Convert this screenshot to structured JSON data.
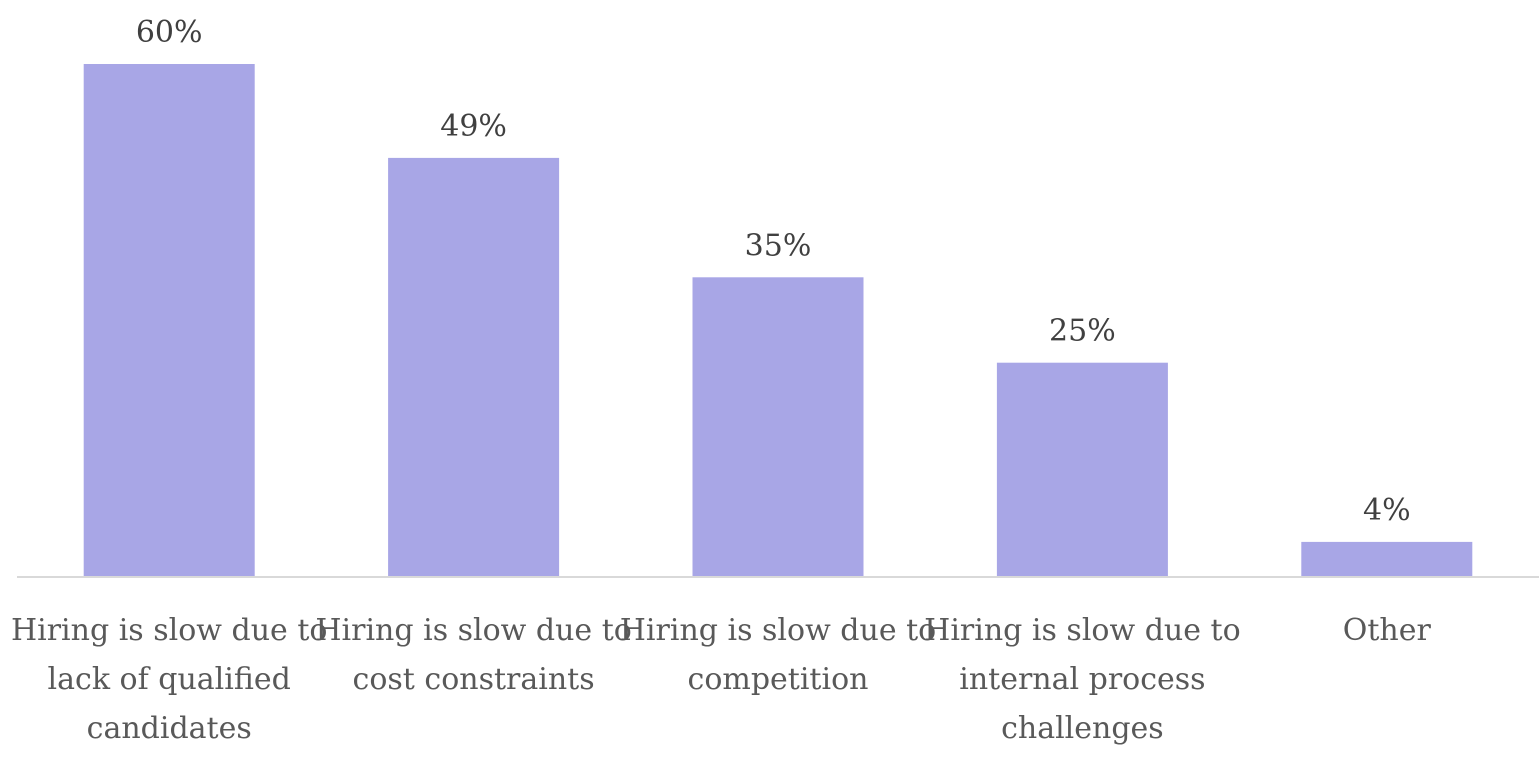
{
  "chart_data": {
    "type": "bar",
    "categories": [
      [
        "Hiring is slow due to",
        "lack of qualified",
        "candidates"
      ],
      [
        "Hiring is slow due to",
        "cost constraints"
      ],
      [
        "Hiring is slow due to",
        "competition"
      ],
      [
        "Hiring is slow due to",
        "internal process",
        "challenges"
      ],
      [
        "Other"
      ]
    ],
    "values": [
      60,
      49,
      35,
      25,
      4
    ],
    "value_labels": [
      "60%",
      "49%",
      "35%",
      "25%",
      "4%"
    ],
    "unit": "%",
    "ylim": [
      0,
      60
    ],
    "grid": false,
    "legend": "none",
    "bar_color": "#a8a6e6",
    "axis_color": "#d9d9d9"
  }
}
